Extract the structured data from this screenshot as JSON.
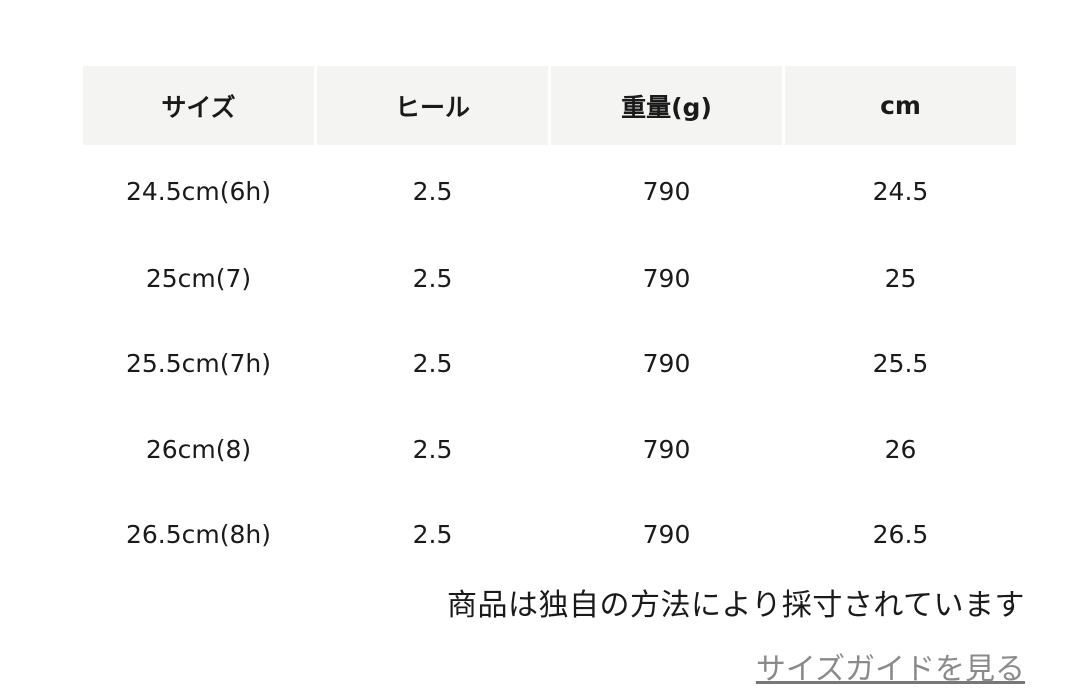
{
  "table": {
    "headers": [
      "サイズ",
      "ヒール",
      "重量(g)",
      "cm"
    ],
    "rows": [
      [
        "24.5cm(6h)",
        "2.5",
        "790",
        "24.5"
      ],
      [
        "25cm(7)",
        "2.5",
        "790",
        "25"
      ],
      [
        "25.5cm(7h)",
        "2.5",
        "790",
        "25.5"
      ],
      [
        "26cm(8)",
        "2.5",
        "790",
        "26"
      ],
      [
        "26.5cm(8h)",
        "2.5",
        "790",
        "26.5"
      ]
    ]
  },
  "note": "商品は独自の方法により採寸されています",
  "size_guide_link": "サイズガイドを見る",
  "colors": {
    "header_bg": "#f4f4f2",
    "link": "#8a8a8a"
  }
}
